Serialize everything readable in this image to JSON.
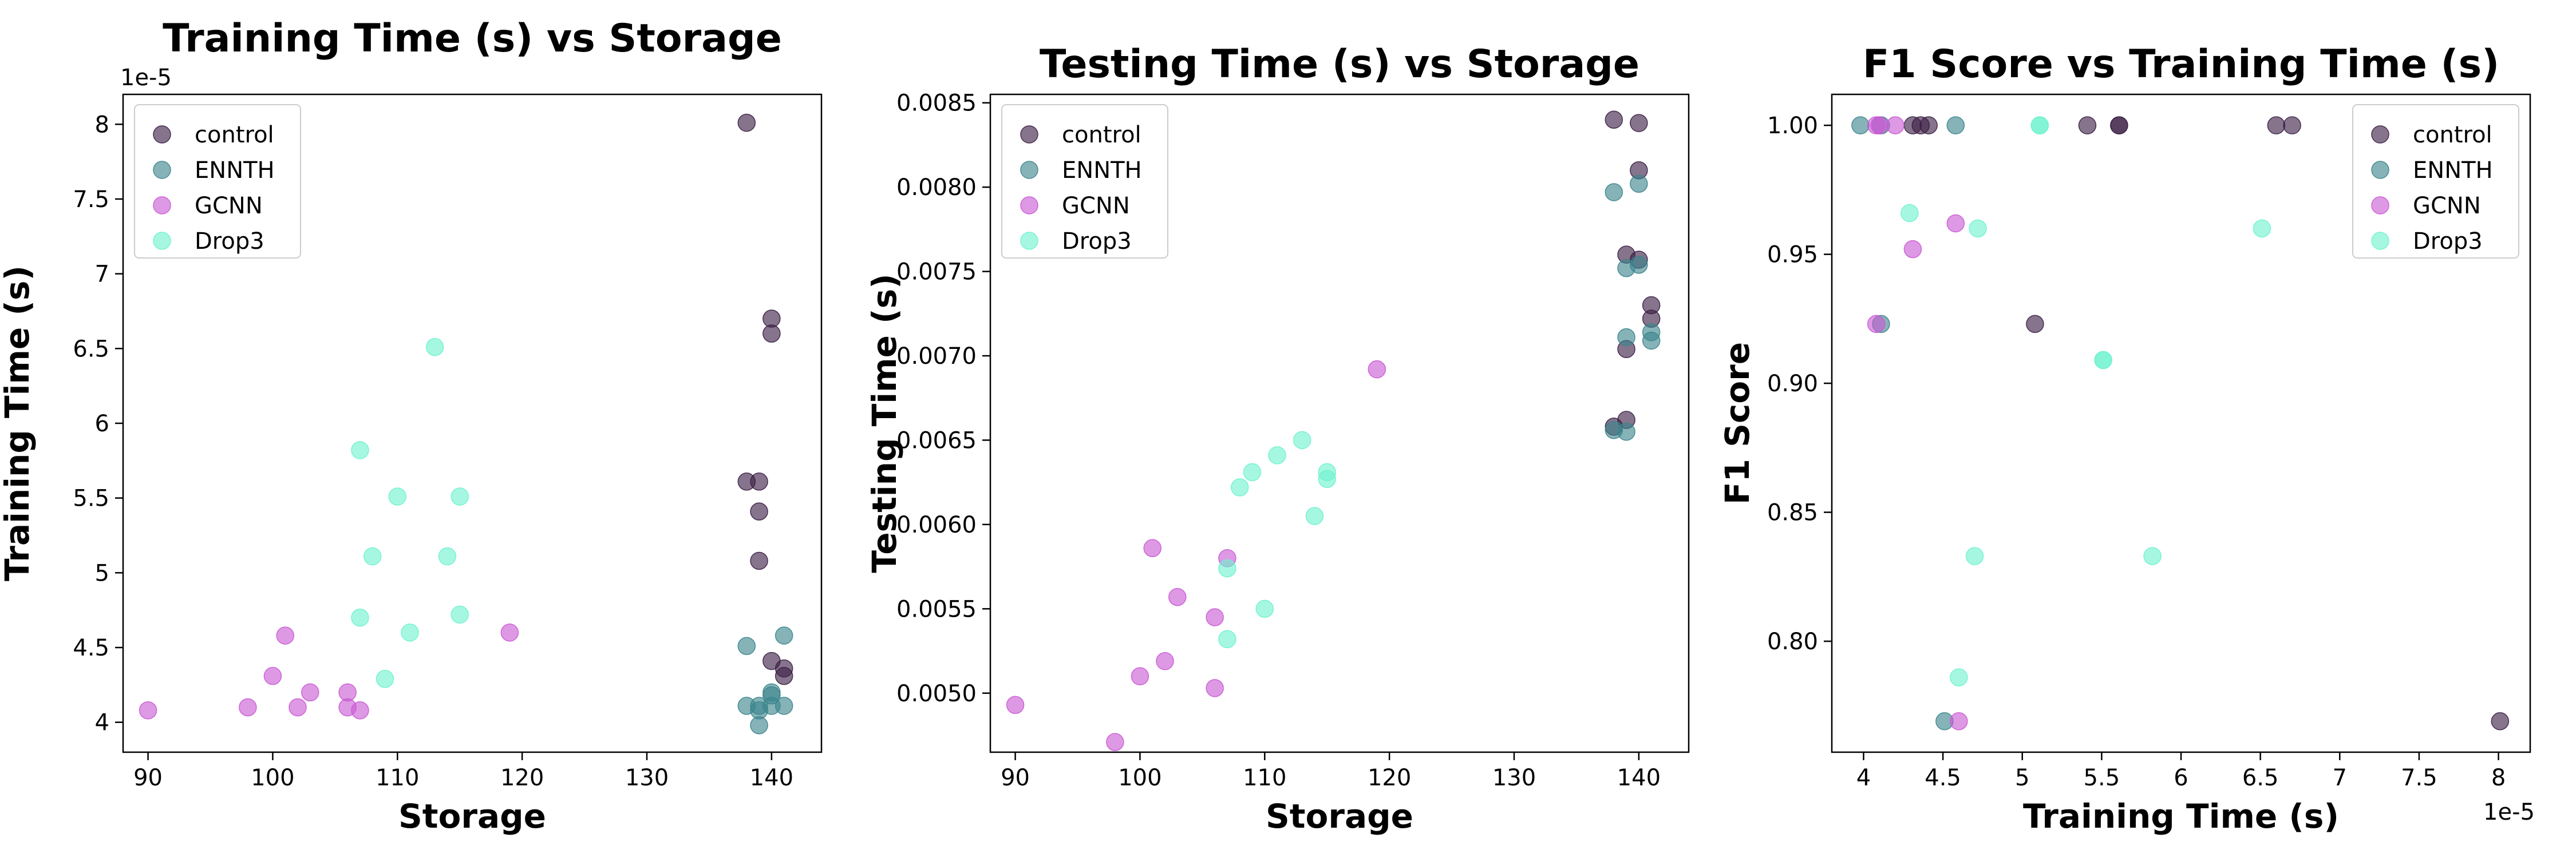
{
  "colors": {
    "control": "#3b1f45",
    "ENNTH": "#3b858c",
    "GCNN": "#c95ad4",
    "Drop3": "#6ff2ce"
  },
  "chart_data": [
    {
      "type": "scatter",
      "title": "Training Time (s) vs Storage",
      "xlabel": "Storage",
      "ylabel": "Training Time (s)",
      "xlim": [
        88,
        144
      ],
      "ylim": [
        3.8,
        8.2
      ],
      "y_offset_label": "1e-5",
      "x_offset_label": "",
      "xticks": [
        90,
        100,
        110,
        120,
        130,
        140
      ],
      "yticks": [
        4.0,
        4.5,
        5.0,
        5.5,
        6.0,
        6.5,
        7.0,
        7.5,
        8.0
      ],
      "legend": {
        "location": "upper-left",
        "entries": [
          "control",
          "ENNTH",
          "GCNN",
          "Drop3"
        ]
      },
      "series": [
        {
          "name": "control",
          "points": [
            [
              138,
              8.01
            ],
            [
              140,
              6.7
            ],
            [
              140,
              6.6
            ],
            [
              138,
              5.61
            ],
            [
              139,
              5.61
            ],
            [
              139,
              5.41
            ],
            [
              139,
              5.08
            ],
            [
              140,
              4.41
            ],
            [
              141,
              4.36
            ],
            [
              141,
              4.31
            ]
          ]
        },
        {
          "name": "ENNTH",
          "points": [
            [
              141,
              4.58
            ],
            [
              138,
              4.51
            ],
            [
              140,
              4.2
            ],
            [
              140,
              4.18
            ],
            [
              138,
              4.11
            ],
            [
              139,
              4.11
            ],
            [
              140,
              4.11
            ],
            [
              141,
              4.11
            ],
            [
              139,
              4.08
            ],
            [
              139,
              3.98
            ]
          ]
        },
        {
          "name": "GCNN",
          "points": [
            [
              90,
              4.08
            ],
            [
              98,
              4.1
            ],
            [
              100,
              4.31
            ],
            [
              101,
              4.58
            ],
            [
              102,
              4.1
            ],
            [
              103,
              4.2
            ],
            [
              106,
              4.2
            ],
            [
              106,
              4.1
            ],
            [
              107,
              4.08
            ],
            [
              119,
              4.6
            ]
          ]
        },
        {
          "name": "Drop3",
          "points": [
            [
              113,
              6.51
            ],
            [
              107,
              5.82
            ],
            [
              110,
              5.51
            ],
            [
              115,
              5.51
            ],
            [
              108,
              5.11
            ],
            [
              114,
              5.11
            ],
            [
              107,
              4.7
            ],
            [
              115,
              4.72
            ],
            [
              111,
              4.6
            ],
            [
              109,
              4.29
            ]
          ]
        }
      ]
    },
    {
      "type": "scatter",
      "title": "Testing Time (s) vs Storage",
      "xlabel": "Storage",
      "ylabel": "Testing Time (s)",
      "xlim": [
        88,
        144
      ],
      "ylim": [
        0.00465,
        0.00855
      ],
      "y_offset_label": "",
      "x_offset_label": "",
      "xticks": [
        90,
        100,
        110,
        120,
        130,
        140
      ],
      "yticks": [
        0.005,
        0.0055,
        0.006,
        0.0065,
        0.007,
        0.0075,
        0.008,
        0.0085
      ],
      "ytick_labels": [
        "0.0050",
        "0.0055",
        "0.0060",
        "0.0065",
        "0.0070",
        "0.0075",
        "0.0080",
        "0.0085"
      ],
      "legend": {
        "location": "upper-left",
        "entries": [
          "control",
          "ENNTH",
          "GCNN",
          "Drop3"
        ]
      },
      "series": [
        {
          "name": "control",
          "points": [
            [
              138,
              0.0084
            ],
            [
              140,
              0.00838
            ],
            [
              140,
              0.0081
            ],
            [
              139,
              0.0076
            ],
            [
              140,
              0.00757
            ],
            [
              139,
              0.00704
            ],
            [
              141,
              0.0073
            ],
            [
              141,
              0.00722
            ],
            [
              139,
              0.00662
            ],
            [
              138,
              0.00658
            ]
          ]
        },
        {
          "name": "ENNTH",
          "points": [
            [
              138,
              0.00797
            ],
            [
              140,
              0.00802
            ],
            [
              139,
              0.00752
            ],
            [
              140,
              0.00754
            ],
            [
              139,
              0.00711
            ],
            [
              141,
              0.00714
            ],
            [
              141,
              0.00709
            ],
            [
              138,
              0.00656
            ],
            [
              139,
              0.00655
            ]
          ]
        },
        {
          "name": "GCNN",
          "points": [
            [
              119,
              0.00692
            ],
            [
              101,
              0.00586
            ],
            [
              107,
              0.0058
            ],
            [
              103,
              0.00557
            ],
            [
              106,
              0.00545
            ],
            [
              102,
              0.00519
            ],
            [
              100,
              0.0051
            ],
            [
              106,
              0.00503
            ],
            [
              90,
              0.00493
            ],
            [
              98,
              0.00471
            ]
          ]
        },
        {
          "name": "Drop3",
          "points": [
            [
              113,
              0.0065
            ],
            [
              111,
              0.00641
            ],
            [
              109,
              0.00631
            ],
            [
              115,
              0.00631
            ],
            [
              115,
              0.00627
            ],
            [
              108,
              0.00622
            ],
            [
              114,
              0.00605
            ],
            [
              107,
              0.00574
            ],
            [
              110,
              0.0055
            ],
            [
              107,
              0.00532
            ]
          ]
        }
      ]
    },
    {
      "type": "scatter",
      "title": "F1 Score vs Training Time (s)",
      "xlabel": "Training Time (s)",
      "ylabel": "F1 Score",
      "xlim": [
        3.8,
        8.2
      ],
      "ylim": [
        0.757,
        1.012
      ],
      "y_offset_label": "",
      "x_offset_label": "1e-5",
      "xticks": [
        4.0,
        4.5,
        5.0,
        5.5,
        6.0,
        6.5,
        7.0,
        7.5,
        8.0
      ],
      "yticks": [
        0.8,
        0.85,
        0.9,
        0.95,
        1.0
      ],
      "ytick_labels": [
        "0.80",
        "0.85",
        "0.90",
        "0.95",
        "1.00"
      ],
      "legend": {
        "location": "upper-right",
        "entries": [
          "control",
          "ENNTH",
          "GCNN",
          "Drop3"
        ]
      },
      "series": [
        {
          "name": "control",
          "points": [
            [
              4.31,
              1.0
            ],
            [
              4.36,
              1.0
            ],
            [
              4.41,
              1.0
            ],
            [
              5.41,
              1.0
            ],
            [
              5.61,
              1.0
            ],
            [
              5.61,
              1.0
            ],
            [
              6.6,
              1.0
            ],
            [
              6.7,
              1.0
            ],
            [
              5.08,
              0.923
            ],
            [
              8.01,
              0.769
            ]
          ]
        },
        {
          "name": "ENNTH",
          "points": [
            [
              3.98,
              1.0
            ],
            [
              4.11,
              1.0
            ],
            [
              4.58,
              1.0
            ],
            [
              4.11,
              0.923
            ],
            [
              4.51,
              0.769
            ]
          ]
        },
        {
          "name": "GCNN",
          "points": [
            [
              4.08,
              1.0
            ],
            [
              4.1,
              1.0
            ],
            [
              4.2,
              1.0
            ],
            [
              4.58,
              0.962
            ],
            [
              4.31,
              0.952
            ],
            [
              4.08,
              0.923
            ],
            [
              4.6,
              0.769
            ]
          ]
        },
        {
          "name": "Drop3",
          "points": [
            [
              5.11,
              1.0
            ],
            [
              5.11,
              1.0
            ],
            [
              4.29,
              0.966
            ],
            [
              4.72,
              0.96
            ],
            [
              6.51,
              0.96
            ],
            [
              5.51,
              0.909
            ],
            [
              5.51,
              0.909
            ],
            [
              4.7,
              0.833
            ],
            [
              5.82,
              0.833
            ],
            [
              4.6,
              0.786
            ]
          ]
        }
      ]
    }
  ]
}
